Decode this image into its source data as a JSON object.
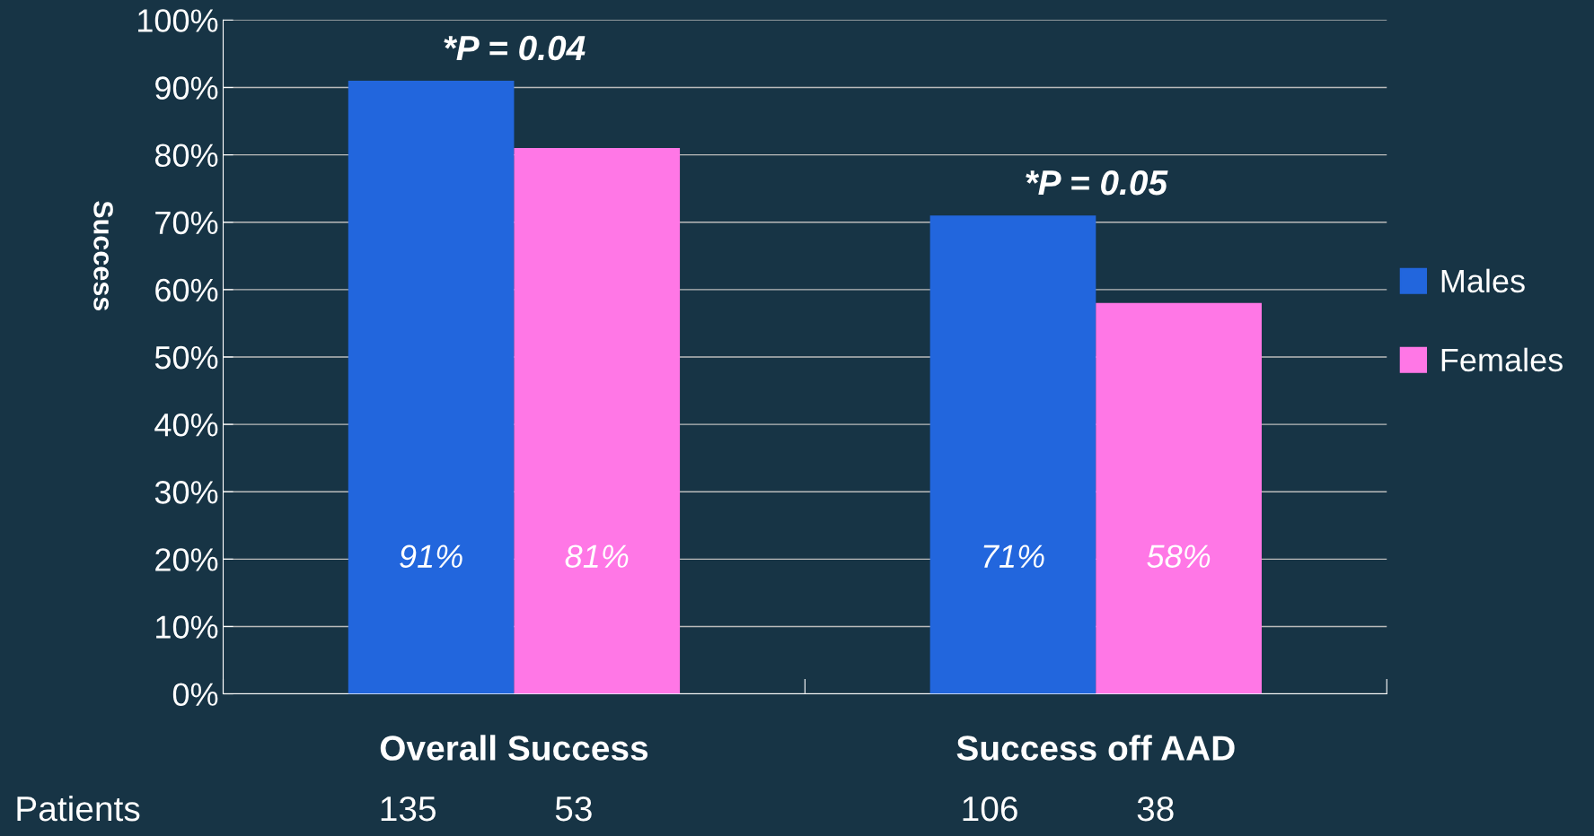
{
  "chart_data": {
    "type": "bar",
    "ylabel": "Success",
    "categories": [
      "Overall Success",
      "Success off AAD"
    ],
    "series": [
      {
        "name": "Males",
        "color": "#2266dd",
        "values": [
          91,
          71
        ],
        "value_labels": [
          "91%",
          "71%"
        ]
      },
      {
        "name": "Females",
        "color": "#ff77e6",
        "values": [
          81,
          58
        ],
        "value_labels": [
          "81%",
          "58%"
        ]
      }
    ],
    "ylim": [
      0,
      100
    ],
    "yticks": [
      {
        "value": 0,
        "label": "0%"
      },
      {
        "value": 10,
        "label": "10%"
      },
      {
        "value": 20,
        "label": "20%"
      },
      {
        "value": 30,
        "label": "30%"
      },
      {
        "value": 40,
        "label": "40%"
      },
      {
        "value": 50,
        "label": "50%"
      },
      {
        "value": 60,
        "label": "60%"
      },
      {
        "value": 70,
        "label": "70%"
      },
      {
        "value": 80,
        "label": "80%"
      },
      {
        "value": 90,
        "label": "90%"
      },
      {
        "value": 100,
        "label": "100%"
      }
    ],
    "grid": "y",
    "legend": "right",
    "annotations": [
      "*P = 0.04",
      "*P = 0.05",
      "Patients",
      "135",
      "53",
      "106",
      "38"
    ]
  }
}
